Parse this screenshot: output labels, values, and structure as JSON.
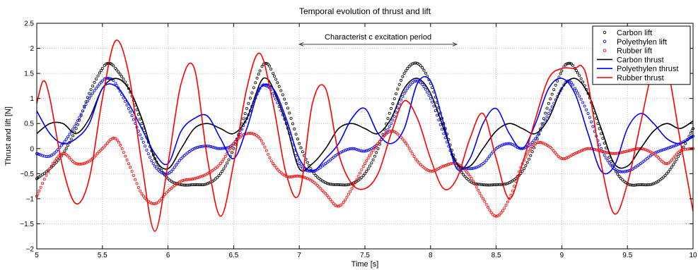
{
  "chart_data": {
    "type": "line",
    "title": "Temporal evolution of thrust and lift",
    "xlabel": "Time [s]",
    "ylabel": "Thrust and lift [N]",
    "xlim": [
      5,
      10
    ],
    "ylim": [
      -2,
      2.5
    ],
    "xticks": [
      5,
      5.5,
      6,
      6.5,
      7,
      7.5,
      8,
      8.5,
      9,
      9.5,
      10
    ],
    "xtick_labels": [
      "5",
      "5.5",
      "6",
      "6.5",
      "7",
      "7.5",
      "8",
      "8.5",
      "9",
      "9.5",
      "10"
    ],
    "yticks": [
      -2,
      -1.5,
      -1,
      -0.5,
      0,
      0.5,
      1,
      1.5,
      2,
      2.5
    ],
    "ytick_labels": [
      "−2",
      "−1.5",
      "−1",
      "−0.5",
      "0",
      "0.5",
      "1",
      "1.5",
      "2",
      "2.5"
    ],
    "grid": true,
    "legend_position": "top-right",
    "annotation": {
      "text": "Characterist c excitation period",
      "x_start": 7,
      "x_end": 8.2,
      "y": 2.08
    },
    "series": [
      {
        "name": "Carbon lift",
        "style": "markers",
        "color": "#000000",
        "x": [
          5.0,
          5.1,
          5.2,
          5.3,
          5.4,
          5.5,
          5.55,
          5.6,
          5.7,
          5.8,
          5.9,
          6.0,
          6.1,
          6.2,
          6.3,
          6.4,
          6.5,
          6.6,
          6.7,
          6.75,
          6.8,
          6.9,
          7.0,
          7.1,
          7.2,
          7.3,
          7.4,
          7.5,
          7.6,
          7.7,
          7.8,
          7.9,
          8.0,
          8.1,
          8.2,
          8.3,
          8.4,
          8.5,
          8.6,
          8.7,
          8.8,
          8.9,
          9.0,
          9.05,
          9.1,
          9.2,
          9.3,
          9.4,
          9.5,
          9.6,
          9.7,
          9.8,
          9.9,
          10.0
        ],
        "y": [
          -0.6,
          -0.4,
          -0.1,
          0.4,
          1.1,
          1.6,
          1.7,
          1.6,
          1.2,
          0.5,
          -0.2,
          -0.6,
          -0.72,
          -0.72,
          -0.7,
          -0.5,
          0.0,
          0.8,
          1.55,
          1.7,
          1.5,
          0.9,
          0.1,
          -0.45,
          -0.68,
          -0.72,
          -0.7,
          -0.5,
          0.0,
          0.8,
          1.5,
          1.7,
          1.3,
          0.5,
          -0.3,
          -0.65,
          -0.72,
          -0.72,
          -0.68,
          -0.45,
          0.1,
          0.9,
          1.55,
          1.7,
          1.6,
          1.1,
          0.3,
          -0.4,
          -0.7,
          -0.72,
          -0.7,
          -0.5,
          -0.1,
          0.4
        ]
      },
      {
        "name": "Polyethylen lift",
        "style": "markers",
        "color": "#0000ff",
        "x": [
          5.0,
          5.1,
          5.2,
          5.3,
          5.4,
          5.5,
          5.55,
          5.6,
          5.7,
          5.8,
          5.9,
          6.0,
          6.1,
          6.2,
          6.3,
          6.4,
          6.5,
          6.6,
          6.7,
          6.75,
          6.8,
          6.9,
          7.0,
          7.1,
          7.2,
          7.3,
          7.4,
          7.5,
          7.6,
          7.7,
          7.8,
          7.9,
          8.0,
          8.1,
          8.2,
          8.3,
          8.4,
          8.5,
          8.6,
          8.7,
          8.8,
          8.9,
          9.0,
          9.05,
          9.1,
          9.2,
          9.3,
          9.4,
          9.5,
          9.6,
          9.7,
          9.8,
          9.9,
          10.0
        ],
        "y": [
          -0.1,
          -0.15,
          0.1,
          0.5,
          1.0,
          1.35,
          1.4,
          1.3,
          0.8,
          0.2,
          -0.35,
          -0.5,
          -0.2,
          0.0,
          0.05,
          0.0,
          0.1,
          0.6,
          1.2,
          1.25,
          1.1,
          0.5,
          -0.3,
          -0.45,
          -0.3,
          -0.1,
          0.0,
          -0.05,
          0.1,
          0.5,
          1.1,
          1.35,
          1.0,
          0.3,
          -0.3,
          -0.4,
          -0.3,
          0.0,
          0.1,
          0.0,
          0.2,
          0.7,
          1.2,
          1.35,
          1.2,
          0.7,
          0.0,
          -0.4,
          -0.45,
          -0.3,
          -0.1,
          0.0,
          0.1,
          0.25
        ]
      },
      {
        "name": "Rubber lift",
        "style": "markers",
        "color": "#ff0000",
        "x": [
          5.0,
          5.1,
          5.2,
          5.3,
          5.4,
          5.5,
          5.6,
          5.7,
          5.8,
          5.9,
          6.0,
          6.1,
          6.2,
          6.3,
          6.4,
          6.5,
          6.6,
          6.7,
          6.8,
          6.9,
          7.0,
          7.1,
          7.2,
          7.3,
          7.4,
          7.5,
          7.6,
          7.7,
          7.8,
          7.9,
          8.0,
          8.1,
          8.2,
          8.3,
          8.4,
          8.5,
          8.6,
          8.7,
          8.8,
          8.9,
          9.0,
          9.1,
          9.2,
          9.3,
          9.4,
          9.5,
          9.6,
          9.7,
          9.8,
          9.9,
          10.0
        ],
        "y": [
          -0.95,
          -0.4,
          -0.1,
          -0.3,
          -0.25,
          0.0,
          0.2,
          -0.3,
          -0.9,
          -1.1,
          -0.85,
          -0.65,
          -0.6,
          -0.5,
          -0.3,
          0.1,
          0.3,
          0.2,
          -0.3,
          -0.55,
          -0.55,
          -0.65,
          -0.9,
          -1.15,
          -0.8,
          -0.3,
          0.1,
          0.35,
          0.15,
          -0.25,
          -0.45,
          -0.35,
          -0.3,
          -0.55,
          -1.0,
          -1.35,
          -1.0,
          -0.3,
          0.1,
          0.05,
          -0.2,
          -0.1,
          0.0,
          -0.05,
          -0.1,
          -0.05,
          0.0,
          -0.1,
          -0.3,
          -0.05,
          0.0
        ]
      },
      {
        "name": "Carbon thrust",
        "style": "line",
        "color": "#000000",
        "x": [
          5.0,
          5.1,
          5.2,
          5.3,
          5.4,
          5.5,
          5.6,
          5.7,
          5.8,
          5.9,
          6.0,
          6.1,
          6.2,
          6.3,
          6.4,
          6.5,
          6.6,
          6.7,
          6.75,
          6.8,
          6.9,
          7.0,
          7.1,
          7.2,
          7.3,
          7.4,
          7.5,
          7.6,
          7.7,
          7.8,
          7.9,
          8.0,
          8.1,
          8.2,
          8.3,
          8.4,
          8.5,
          8.6,
          8.7,
          8.8,
          8.9,
          9.0,
          9.1,
          9.2,
          9.3,
          9.4,
          9.5,
          9.6,
          9.7,
          9.8,
          9.9,
          10.0
        ],
        "y": [
          0.3,
          0.5,
          0.5,
          0.3,
          0.6,
          1.2,
          1.4,
          1.2,
          0.6,
          -0.2,
          -0.4,
          0.0,
          0.4,
          0.5,
          0.4,
          0.3,
          0.6,
          1.3,
          1.4,
          1.2,
          0.5,
          -0.4,
          -0.3,
          0.0,
          0.4,
          0.5,
          0.4,
          0.3,
          0.6,
          1.2,
          1.4,
          1.1,
          0.4,
          -0.3,
          -0.35,
          0.0,
          0.35,
          0.5,
          0.4,
          0.3,
          0.6,
          1.2,
          1.4,
          1.1,
          0.4,
          -0.3,
          -0.35,
          0.0,
          0.35,
          0.5,
          0.4,
          0.55
        ]
      },
      {
        "name": "Polyethylen thrust",
        "style": "line",
        "color": "#0000ff",
        "x": [
          5.0,
          5.1,
          5.2,
          5.3,
          5.4,
          5.5,
          5.6,
          5.7,
          5.8,
          5.9,
          6.0,
          6.1,
          6.2,
          6.3,
          6.4,
          6.5,
          6.6,
          6.7,
          6.8,
          6.9,
          7.0,
          7.1,
          7.2,
          7.3,
          7.4,
          7.5,
          7.6,
          7.7,
          7.8,
          7.9,
          8.0,
          8.1,
          8.2,
          8.3,
          8.4,
          8.5,
          8.6,
          8.7,
          8.8,
          8.9,
          9.0,
          9.1,
          9.2,
          9.3,
          9.4,
          9.5,
          9.6,
          9.7,
          9.8,
          9.9,
          10.0
        ],
        "y": [
          0.75,
          0.3,
          0.1,
          0.2,
          0.5,
          1.2,
          1.25,
          0.9,
          0.4,
          -0.1,
          -0.3,
          0.35,
          0.6,
          0.65,
          0.2,
          -0.2,
          0.4,
          1.2,
          1.2,
          0.6,
          -0.2,
          -0.45,
          -0.2,
          0.1,
          0.6,
          0.8,
          0.3,
          0.1,
          0.4,
          1.3,
          1.35,
          0.5,
          -0.4,
          -0.2,
          0.5,
          0.8,
          0.3,
          0.0,
          0.5,
          1.2,
          1.4,
          1.1,
          0.3,
          -0.45,
          -0.35,
          0.4,
          0.7,
          0.5,
          0.2,
          0.1,
          0.25
        ]
      },
      {
        "name": "Rubber thrust",
        "style": "line",
        "color": "#ff0000",
        "x": [
          5.0,
          5.05,
          5.1,
          5.2,
          5.3,
          5.4,
          5.5,
          5.6,
          5.7,
          5.8,
          5.9,
          6.0,
          6.1,
          6.2,
          6.3,
          6.4,
          6.5,
          6.6,
          6.7,
          6.8,
          6.9,
          7.0,
          7.1,
          7.2,
          7.3,
          7.4,
          7.5,
          7.6,
          7.7,
          7.8,
          7.9,
          8.0,
          8.1,
          8.2,
          8.3,
          8.4,
          8.5,
          8.6,
          8.7,
          8.8,
          8.9,
          9.0,
          9.1,
          9.15,
          9.2,
          9.3,
          9.4,
          9.5,
          9.6,
          9.7,
          9.8,
          9.9,
          10.0
        ],
        "y": [
          0.9,
          1.35,
          1.0,
          -0.4,
          -1.1,
          -0.6,
          1.0,
          2.15,
          1.5,
          -0.3,
          -1.65,
          -0.3,
          1.3,
          1.6,
          -0.2,
          -1.35,
          -0.3,
          1.2,
          1.9,
          0.9,
          -0.5,
          -0.9,
          0.9,
          1.2,
          -0.1,
          -0.7,
          -0.8,
          -0.5,
          0.3,
          0.95,
          0.6,
          -0.2,
          -0.8,
          -0.6,
          0.2,
          0.7,
          -0.2,
          -1.0,
          -0.3,
          0.6,
          1.4,
          1.6,
          1.6,
          1.65,
          1.3,
          -0.3,
          -1.3,
          -0.7,
          0.5,
          1.6,
          1.6,
          0.2,
          -1.25
        ]
      }
    ]
  }
}
